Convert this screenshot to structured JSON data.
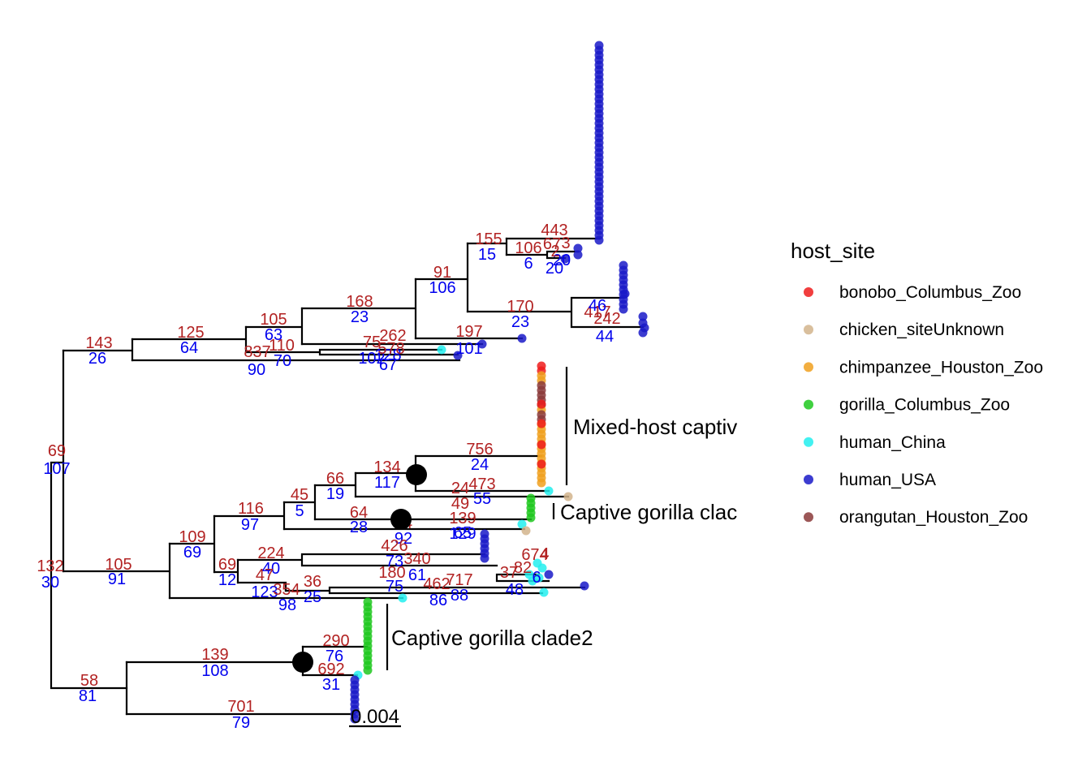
{
  "legend": {
    "title": "host_site",
    "items": [
      {
        "label": "bonobo_Columbus_Zoo",
        "color": "#ee1c1c"
      },
      {
        "label": "chicken_siteUnknown",
        "color": "#d2b48c"
      },
      {
        "label": "chimpanzee_Houston_Zoo",
        "color": "#f0a01e"
      },
      {
        "label": "gorilla_Columbus_Zoo",
        "color": "#1ec81e"
      },
      {
        "label": "human_China",
        "color": "#22eeee"
      },
      {
        "label": "human_USA",
        "color": "#1a1ac8"
      },
      {
        "label": "orangutan_Houston_Zoo",
        "color": "#8b3a3a"
      }
    ]
  },
  "clades": {
    "mixed": "Mixed-host captiv",
    "gorilla1": "Captive gorilla clac",
    "gorilla2": "Captive gorilla clade2"
  },
  "scale_bar": "0.004",
  "node_labels": [
    {
      "a": "69",
      "b": "107"
    },
    {
      "a": "143",
      "b": "26"
    },
    {
      "a": "132",
      "b": "30"
    },
    {
      "a": "58",
      "b": "81"
    },
    {
      "a": "125",
      "b": "64"
    },
    {
      "a": "105",
      "b": "63"
    },
    {
      "a": "837",
      "b": "90"
    },
    {
      "a": "110",
      "b": "70"
    },
    {
      "a": "168",
      "b": "23"
    },
    {
      "a": "91",
      "b": "106"
    },
    {
      "a": "155",
      "b": "15"
    },
    {
      "a": "443",
      "b": ""
    },
    {
      "a": "106",
      "b": "6"
    },
    {
      "a": "67",
      "b": ""
    },
    {
      "a": "3",
      "b": "20"
    },
    {
      "a": "2",
      "b": "20"
    },
    {
      "a": "170",
      "b": "23"
    },
    {
      "a": "417",
      "b": "46"
    },
    {
      "a": "242",
      "b": "44"
    },
    {
      "a": "197",
      "b": "101"
    },
    {
      "a": "262",
      "b": "128"
    },
    {
      "a": "75",
      "b": "102"
    },
    {
      "a": "578",
      "b": "67"
    },
    {
      "a": "105",
      "b": "91"
    },
    {
      "a": "109",
      "b": "69"
    },
    {
      "a": "116",
      "b": "97"
    },
    {
      "a": "45",
      "b": "5"
    },
    {
      "a": "66",
      "b": "19"
    },
    {
      "a": "134",
      "b": "117"
    },
    {
      "a": "756",
      "b": "24"
    },
    {
      "a": "473",
      "b": "55"
    },
    {
      "a": "24",
      "b": ""
    },
    {
      "a": "49",
      "b": ""
    },
    {
      "a": "64",
      "b": "28"
    },
    {
      "a": "24",
      "b": "92"
    },
    {
      "a": "139",
      "b": "129"
    },
    {
      "a": "",
      "b": "65"
    },
    {
      "a": "69",
      "b": "12"
    },
    {
      "a": "224",
      "b": "40"
    },
    {
      "a": "426",
      "b": "73"
    },
    {
      "a": "340",
      "b": "61"
    },
    {
      "a": "47",
      "b": "123"
    },
    {
      "a": "180",
      "b": "75"
    },
    {
      "a": "354",
      "b": "98"
    },
    {
      "a": "36",
      "b": "25"
    },
    {
      "a": "462",
      "b": "86"
    },
    {
      "a": "717",
      "b": "88"
    },
    {
      "a": "674",
      "b": ""
    },
    {
      "a": "37",
      "b": ""
    },
    {
      "a": "82",
      "b": "48"
    },
    {
      "a": "4",
      "b": "6"
    },
    {
      "a": "139",
      "b": "108"
    },
    {
      "a": "290",
      "b": "76"
    },
    {
      "a": "692",
      "b": "31"
    },
    {
      "a": "701",
      "b": "79"
    }
  ]
}
